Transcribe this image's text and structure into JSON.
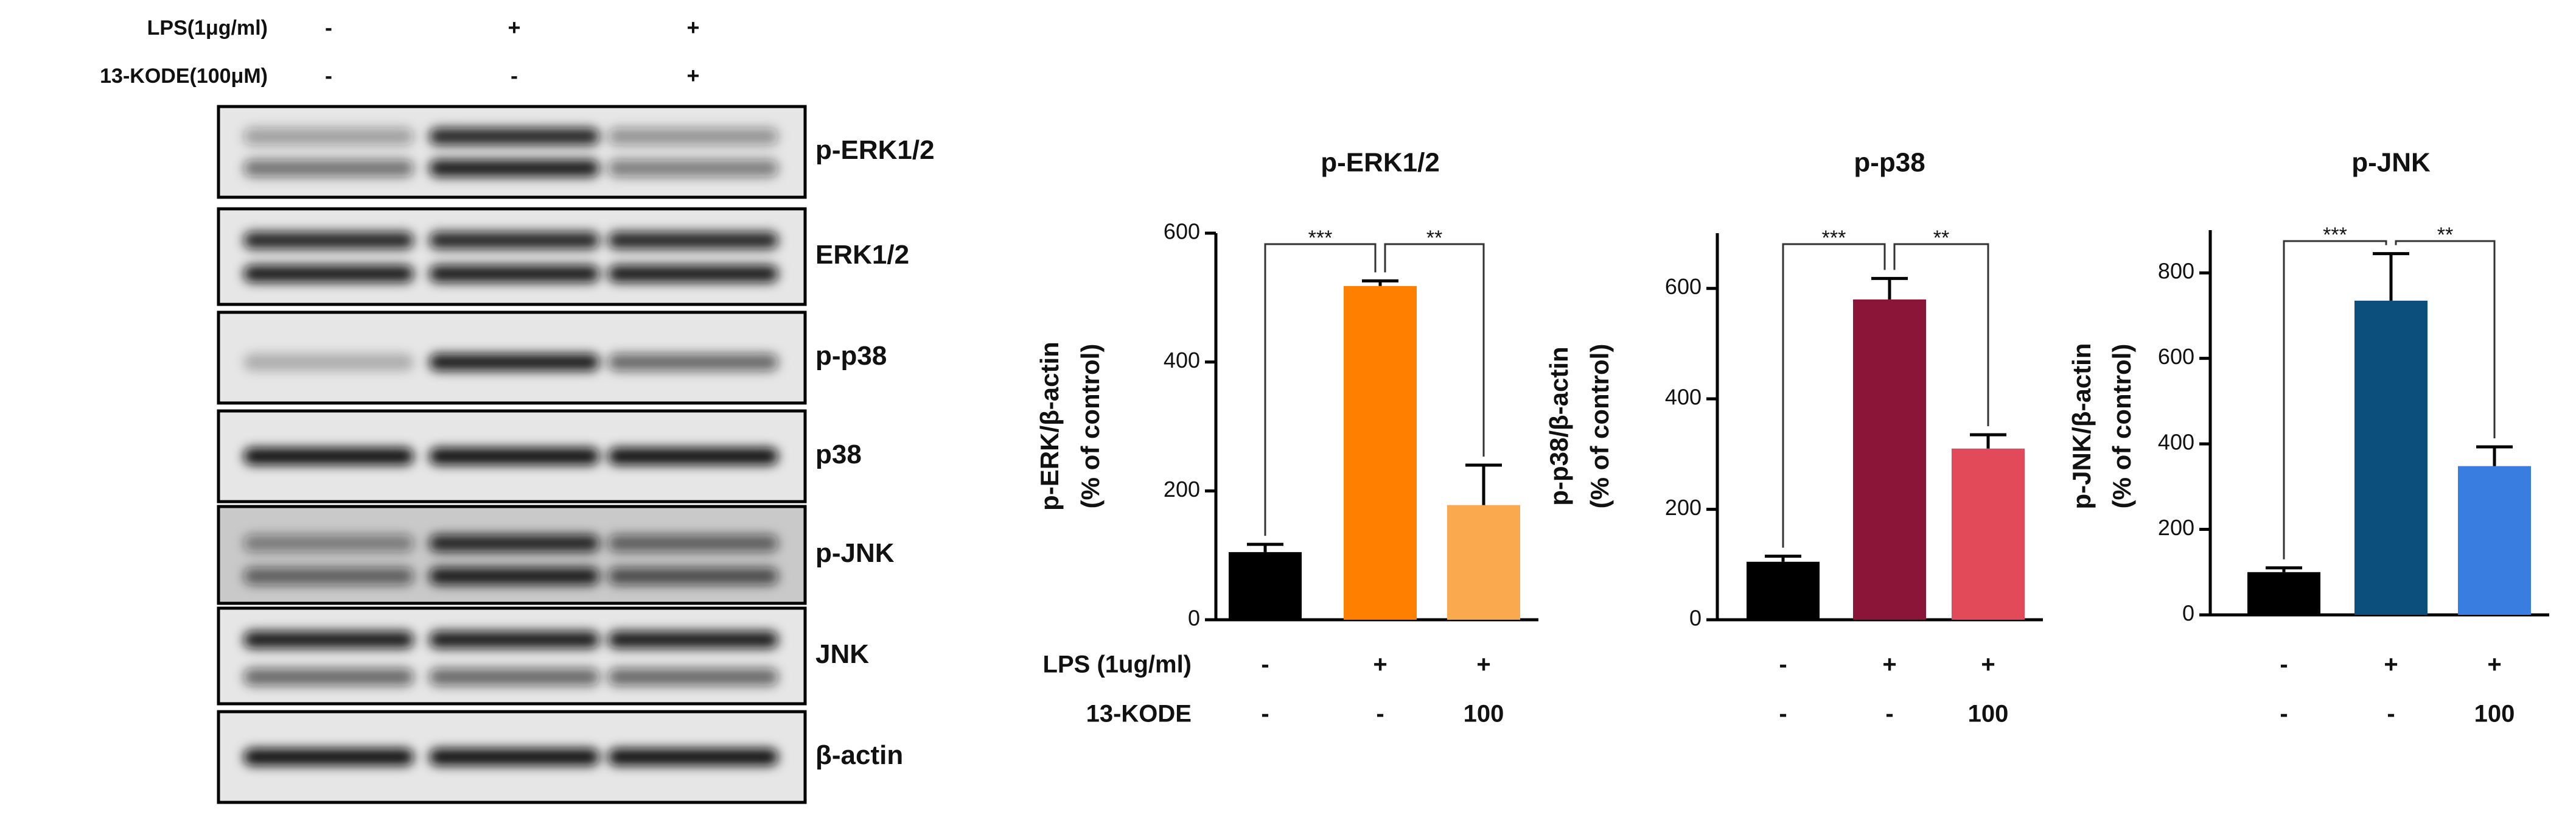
{
  "blot": {
    "treatments": [
      {
        "label": "LPS(1μg/ml)",
        "marks": [
          "-",
          "+",
          "+"
        ]
      },
      {
        "label": "13-KODE(100μM)",
        "marks": [
          "-",
          "-",
          "+"
        ]
      }
    ],
    "bands": [
      "p-ERK1/2",
      "ERK1/2",
      "p-p38",
      "p38",
      "p-JNK",
      "JNK",
      "β-actin"
    ]
  },
  "chart_data": [
    {
      "type": "bar",
      "title": "p-ERK1/2",
      "y_label": [
        "p-ERK/β-actin",
        "(% of control)"
      ],
      "categories": [
        null,
        null,
        null
      ],
      "values": [
        105,
        518,
        178
      ],
      "errors": [
        12,
        8,
        62
      ],
      "colors": [
        "#000000",
        "#ff8000",
        "#fba94f"
      ],
      "ylim": [
        0,
        600
      ],
      "yticks": [
        0,
        200,
        400,
        600
      ],
      "significance": [
        {
          "from": 0,
          "to": 1,
          "label": "***"
        },
        {
          "from": 1,
          "to": 2,
          "label": "**"
        }
      ],
      "treatment_rows": [
        {
          "label": "LPS (1ug/ml)",
          "marks": [
            "-",
            "+",
            "+"
          ]
        },
        {
          "label": "13-KODE",
          "marks": [
            "-",
            "-",
            "100"
          ]
        }
      ]
    },
    {
      "type": "bar",
      "title": "p-p38",
      "y_label": [
        "p-p38/β-actin",
        "(% of control)"
      ],
      "categories": [
        null,
        null,
        null
      ],
      "values": [
        105,
        580,
        310
      ],
      "errors": [
        10,
        38,
        25
      ],
      "colors": [
        "#000000",
        "#8b1538",
        "#e24a5a"
      ],
      "ylim": [
        0,
        700
      ],
      "yticks": [
        0,
        200,
        400,
        600
      ],
      "significance": [
        {
          "from": 0,
          "to": 1,
          "label": "***"
        },
        {
          "from": 1,
          "to": 2,
          "label": "**"
        }
      ],
      "treatment_rows": [
        {
          "marks": [
            "-",
            "+",
            "+"
          ]
        },
        {
          "marks": [
            "-",
            "-",
            "100"
          ]
        }
      ]
    },
    {
      "type": "bar",
      "title": "p-JNK",
      "y_label": [
        "p-JNK/β-actin",
        "(% of control)"
      ],
      "categories": [
        null,
        null,
        null
      ],
      "values": [
        100,
        735,
        348
      ],
      "errors": [
        10,
        110,
        45
      ],
      "colors": [
        "#000000",
        "#0d4f7c",
        "#3a7de0"
      ],
      "ylim": [
        0,
        900
      ],
      "yticks": [
        0,
        200,
        400,
        600,
        800
      ],
      "significance": [
        {
          "from": 0,
          "to": 1,
          "label": "***"
        },
        {
          "from": 1,
          "to": 2,
          "label": "**"
        }
      ],
      "treatment_rows": [
        {
          "marks": [
            "-",
            "+",
            "+"
          ]
        },
        {
          "marks": [
            "-",
            "-",
            "100"
          ]
        }
      ]
    }
  ]
}
